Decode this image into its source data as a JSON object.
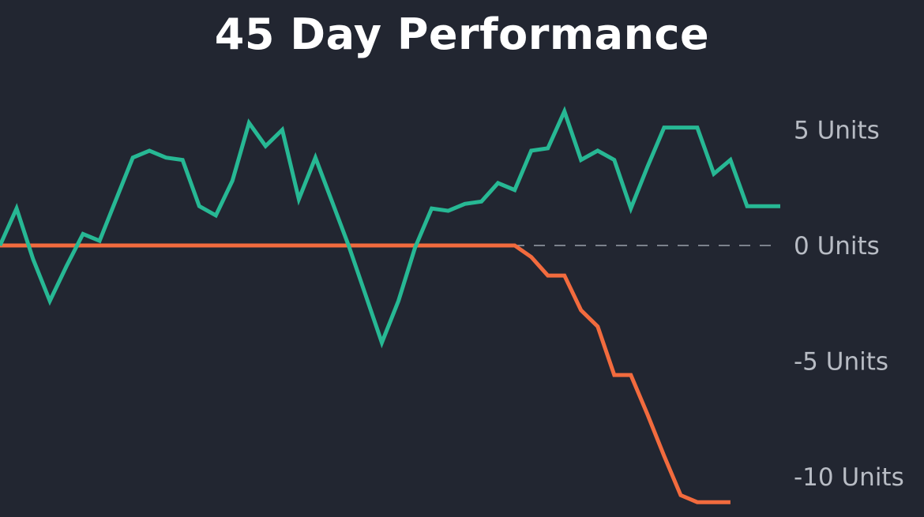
{
  "chart_data": {
    "type": "line",
    "title": "45 Day Performance",
    "xlabel": "",
    "ylabel": "",
    "ylim": [
      -11,
      6
    ],
    "yticks": [
      {
        "value": 5,
        "label": "5 Units"
      },
      {
        "value": 0,
        "label": "0 Units"
      },
      {
        "value": -5,
        "label": "-5 Units"
      },
      {
        "value": -10,
        "label": "-10 Units"
      }
    ],
    "reference_line": {
      "value": 0,
      "style": "dashed"
    },
    "grid": false,
    "legend": "none",
    "x": [
      1,
      2,
      3,
      4,
      5,
      6,
      7,
      8,
      9,
      10,
      11,
      12,
      13,
      14,
      15,
      16,
      17,
      18,
      19,
      20,
      21,
      22,
      23,
      24,
      25,
      26,
      27,
      28,
      29,
      30,
      31,
      32,
      33,
      34,
      35,
      36,
      37,
      38,
      39,
      40,
      41,
      42,
      43,
      44,
      45,
      46,
      47,
      48
    ],
    "series": [
      {
        "color": "#27b894",
        "values": [
          0.0,
          1.6,
          -0.6,
          -2.4,
          -0.9,
          0.5,
          0.2,
          2.0,
          3.8,
          4.1,
          3.8,
          3.7,
          1.7,
          1.3,
          2.8,
          5.3,
          4.3,
          5.0,
          2.0,
          3.8,
          1.9,
          0.0,
          -2.1,
          -4.2,
          -2.4,
          -0.1,
          1.6,
          1.5,
          1.8,
          1.9,
          2.7,
          2.4,
          4.1,
          4.2,
          5.8,
          3.7,
          4.1,
          3.7,
          1.6,
          3.4,
          5.1,
          5.1,
          5.1,
          3.1,
          3.7,
          1.7,
          1.7,
          1.7
        ]
      },
      {
        "color": "#f26b3e",
        "values": [
          0,
          0,
          0,
          0,
          0,
          0,
          0,
          0,
          0,
          0,
          0,
          0,
          0,
          0,
          0,
          0,
          0,
          0,
          0,
          0,
          0,
          0,
          0,
          0,
          0,
          0,
          0,
          0,
          0,
          0,
          0,
          0,
          -0.5,
          -1.3,
          -1.3,
          -2.8,
          -3.5,
          -5.6,
          -5.6,
          -7.3,
          -9.1,
          -10.8,
          -11.1,
          -11.1,
          -11.1,
          null,
          null,
          null
        ]
      }
    ]
  }
}
